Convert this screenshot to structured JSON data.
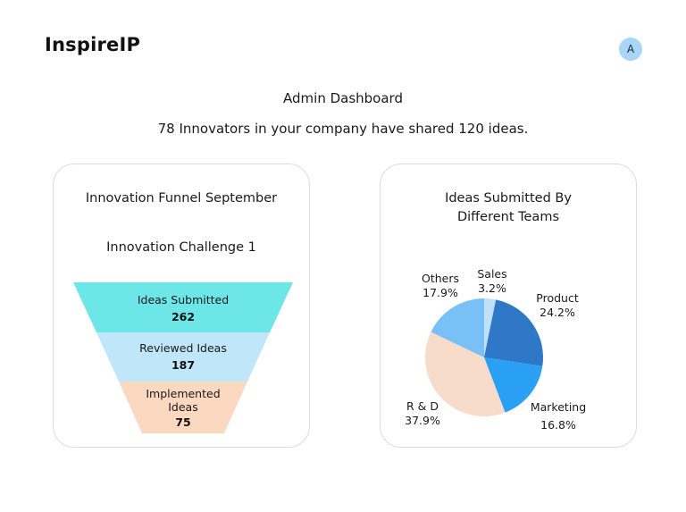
{
  "header": {
    "brand": "InspireIP",
    "avatar_initial": "A"
  },
  "main": {
    "title": "Admin Dashboard",
    "subtitle": "78 Innovators in your company have shared 120 ideas."
  },
  "funnel_card": {
    "title": "Innovation Funnel September",
    "challenge": "Innovation Challenge 1",
    "stages": [
      {
        "label_lines": [
          "Ideas Submitted"
        ],
        "value": "262",
        "color": "#6de6e8"
      },
      {
        "label_lines": [
          "Reviewed Ideas"
        ],
        "value": "187",
        "color": "#bfe6f9"
      },
      {
        "label_lines": [
          "Implemented",
          "Ideas"
        ],
        "value": "75",
        "color": "#fbd8c0"
      }
    ]
  },
  "pie_card": {
    "title_lines": [
      "Ideas Submitted By",
      "Different Teams"
    ]
  },
  "chart_data": {
    "type": "pie",
    "title": "Ideas Submitted By Different Teams",
    "slices": [
      {
        "name": "Sales",
        "percent_label": "3.2%",
        "value": 3.2,
        "color": "#bfe0f7"
      },
      {
        "name": "Product",
        "percent_label": "24.2%",
        "value": 24.2,
        "color": "#2f78c8"
      },
      {
        "name": "Marketing",
        "percent_label": "16.8%",
        "value": 16.8,
        "color": "#2aa0f5"
      },
      {
        "name": "R & D",
        "percent_label": "37.9%",
        "value": 37.9,
        "color": "#f8dccb"
      },
      {
        "name": "Others",
        "percent_label": "17.9%",
        "value": 17.9,
        "color": "#79c0f6"
      }
    ]
  }
}
